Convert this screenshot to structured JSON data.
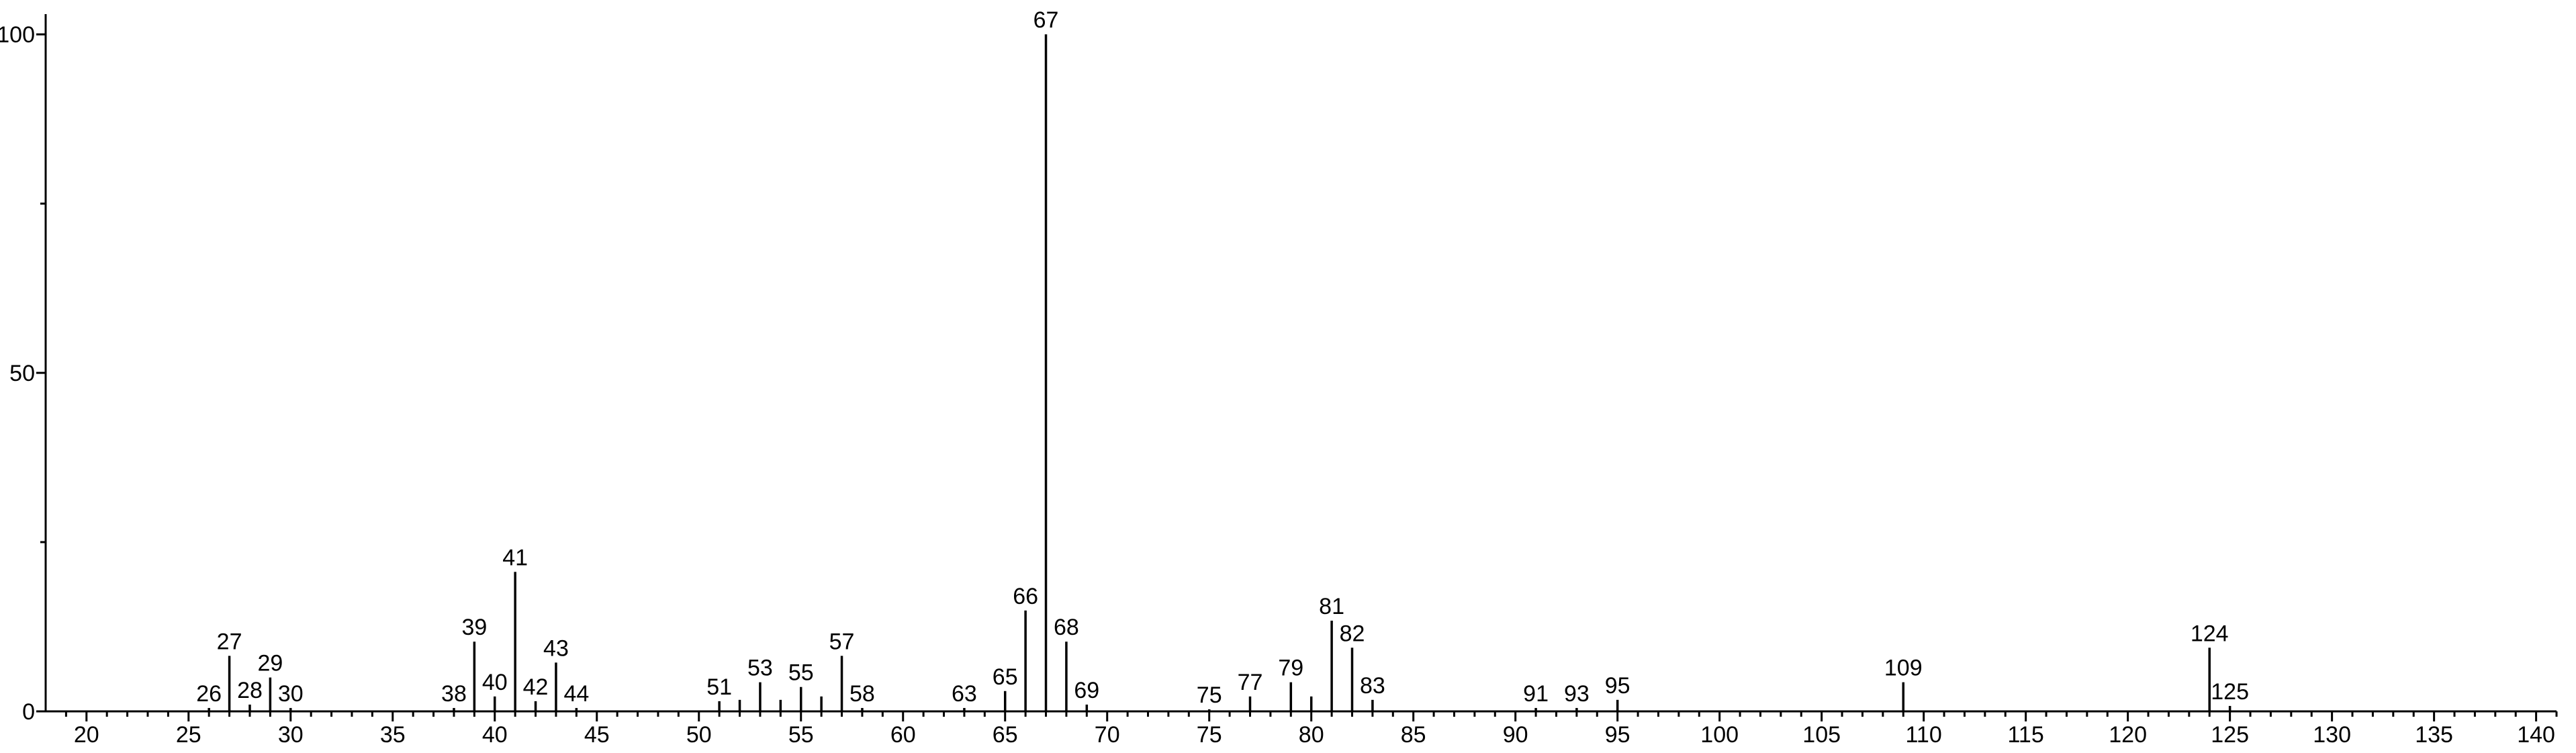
{
  "chart_data": {
    "type": "stem",
    "x": [
      26,
      27,
      28,
      29,
      30,
      38,
      39,
      40,
      41,
      42,
      43,
      44,
      51,
      52,
      53,
      54,
      55,
      56,
      57,
      58,
      63,
      65,
      66,
      67,
      68,
      69,
      75,
      77,
      79,
      80,
      81,
      82,
      83,
      91,
      93,
      95,
      109,
      124,
      125
    ],
    "labels": [
      26,
      27,
      28,
      29,
      30,
      38,
      39,
      40,
      41,
      42,
      43,
      44,
      51,
      null,
      53,
      null,
      55,
      null,
      57,
      58,
      63,
      65,
      66,
      67,
      68,
      69,
      75,
      77,
      79,
      null,
      81,
      82,
      83,
      91,
      93,
      95,
      109,
      124,
      125
    ],
    "values": [
      0.5,
      8.2,
      1,
      5,
      0.5,
      0.5,
      10.3,
      2.2,
      20.6,
      1.5,
      7.2,
      0.5,
      1.5,
      1.7,
      4.3,
      1.7,
      3.6,
      2.2,
      8.2,
      0.5,
      0.5,
      3,
      14.9,
      100,
      10.3,
      1,
      0.3,
      2.2,
      4.3,
      2.2,
      13.4,
      9.4,
      1.7,
      0.5,
      0.5,
      1.7,
      4.3,
      9.4,
      0.8
    ],
    "color": "#000000",
    "xlim": [
      18,
      141
    ],
    "ylim": [
      0,
      102
    ],
    "xticks": [
      20,
      25,
      30,
      35,
      40,
      45,
      50,
      55,
      60,
      65,
      70,
      75,
      80,
      85,
      90,
      95,
      100,
      105,
      110,
      115,
      120,
      125,
      130,
      135,
      140
    ],
    "xticks_minor": [
      19,
      21,
      22,
      23,
      24,
      26,
      27,
      28,
      29,
      31,
      32,
      33,
      34,
      36,
      37,
      38,
      39,
      41,
      42,
      43,
      44,
      46,
      47,
      48,
      49,
      51,
      52,
      53,
      54,
      56,
      57,
      58,
      59,
      61,
      62,
      63,
      64,
      66,
      67,
      68,
      69,
      71,
      72,
      73,
      74,
      76,
      77,
      78,
      79,
      81,
      82,
      83,
      84,
      86,
      87,
      88,
      89,
      91,
      92,
      93,
      94,
      96,
      97,
      98,
      99,
      101,
      102,
      103,
      104,
      106,
      107,
      108,
      109,
      111,
      112,
      113,
      114,
      116,
      117,
      118,
      119,
      121,
      122,
      123,
      124,
      126,
      127,
      128,
      129,
      131,
      132,
      133,
      134,
      136,
      137,
      138,
      139,
      141
    ],
    "yticks": [
      0,
      50,
      100
    ],
    "yticks_minor": [
      25,
      75
    ]
  }
}
